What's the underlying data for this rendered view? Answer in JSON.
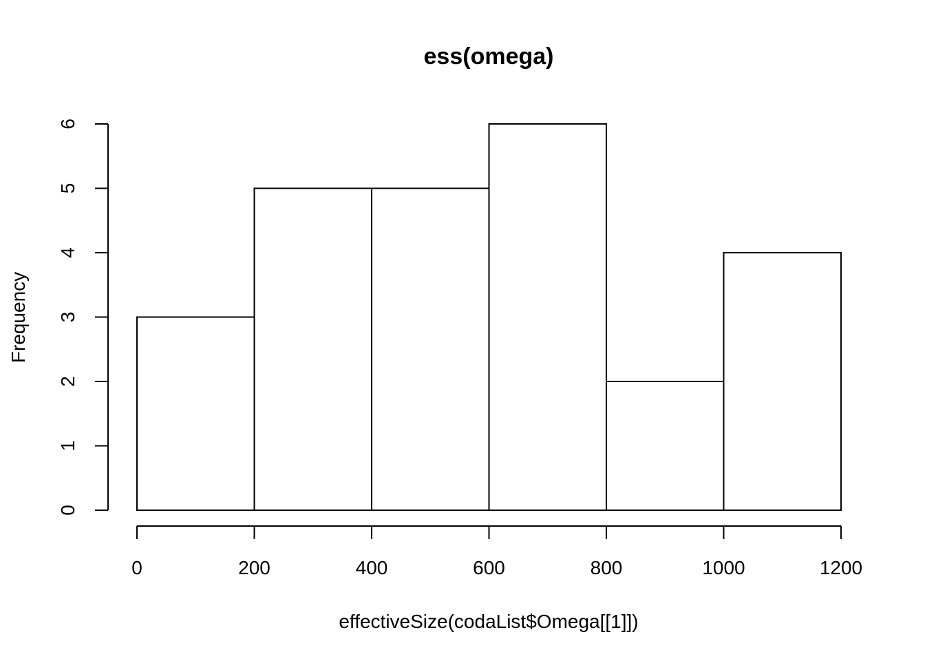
{
  "chart_data": {
    "type": "bar",
    "title": "ess(omega)",
    "xlabel": "effectiveSize(codaList$Omega[[1]])",
    "ylabel": "Frequency",
    "bins": [
      {
        "from": 0,
        "to": 200,
        "count": 3
      },
      {
        "from": 200,
        "to": 400,
        "count": 5
      },
      {
        "from": 400,
        "to": 600,
        "count": 5
      },
      {
        "from": 600,
        "to": 800,
        "count": 6
      },
      {
        "from": 800,
        "to": 1000,
        "count": 2
      },
      {
        "from": 1000,
        "to": 1200,
        "count": 4
      }
    ],
    "xlim": [
      0,
      1200
    ],
    "ylim": [
      0,
      6
    ],
    "x_ticks": [
      "0",
      "200",
      "400",
      "600",
      "800",
      "1000",
      "1200"
    ],
    "y_ticks": [
      "0",
      "1",
      "2",
      "3",
      "4",
      "5",
      "6"
    ],
    "grid": false,
    "bar_fill": "#ffffff",
    "bar_stroke": "#000000"
  }
}
